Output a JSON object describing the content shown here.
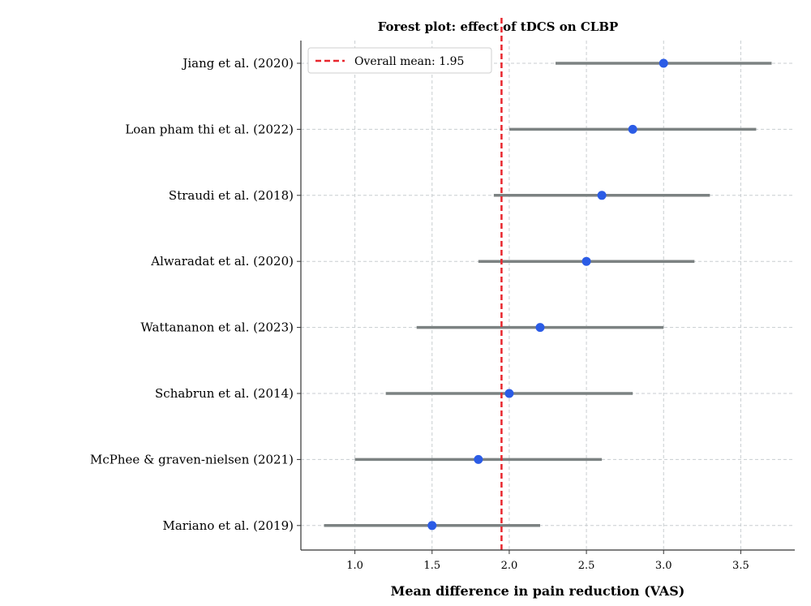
{
  "chart_data": {
    "type": "forest",
    "title": "Forest plot: effect of tDCS on CLBP",
    "xlabel": "Mean difference in pain reduction (VAS)",
    "ylabel": "",
    "xlim": [
      0.65,
      3.85
    ],
    "xticks": [
      "1.0",
      "1.5",
      "2.0",
      "2.5",
      "3.0",
      "3.5"
    ],
    "grid": true,
    "legend_position": "top-left",
    "studies": [
      {
        "label": "Jiang et al. (2020)",
        "mean": 3.0,
        "lower": 2.3,
        "upper": 3.7
      },
      {
        "label": "Loan pham thi et al. (2022)",
        "mean": 2.8,
        "lower": 2.0,
        "upper": 3.6
      },
      {
        "label": "Straudi et al. (2018)",
        "mean": 2.6,
        "lower": 1.9,
        "upper": 3.3
      },
      {
        "label": "Alwaradat et al. (2020)",
        "mean": 2.5,
        "lower": 1.8,
        "upper": 3.2
      },
      {
        "label": "Wattananon et al. (2023)",
        "mean": 2.2,
        "lower": 1.4,
        "upper": 3.0
      },
      {
        "label": "Schabrun et al. (2014)",
        "mean": 2.0,
        "lower": 1.2,
        "upper": 2.8
      },
      {
        "label": "McPhee & graven-nielsen (2021)",
        "mean": 1.8,
        "lower": 1.0,
        "upper": 2.6
      },
      {
        "label": "Mariano et al. (2019)",
        "mean": 1.5,
        "lower": 0.8,
        "upper": 2.2
      }
    ],
    "overall_mean": 1.95,
    "legend_label": "Overall mean: 1.95",
    "colors": {
      "point": "#2b5ce6",
      "ci": "#7c8282",
      "mean_line": "#e8262d",
      "grid": "#c8cdd0",
      "axis": "#333333"
    }
  }
}
